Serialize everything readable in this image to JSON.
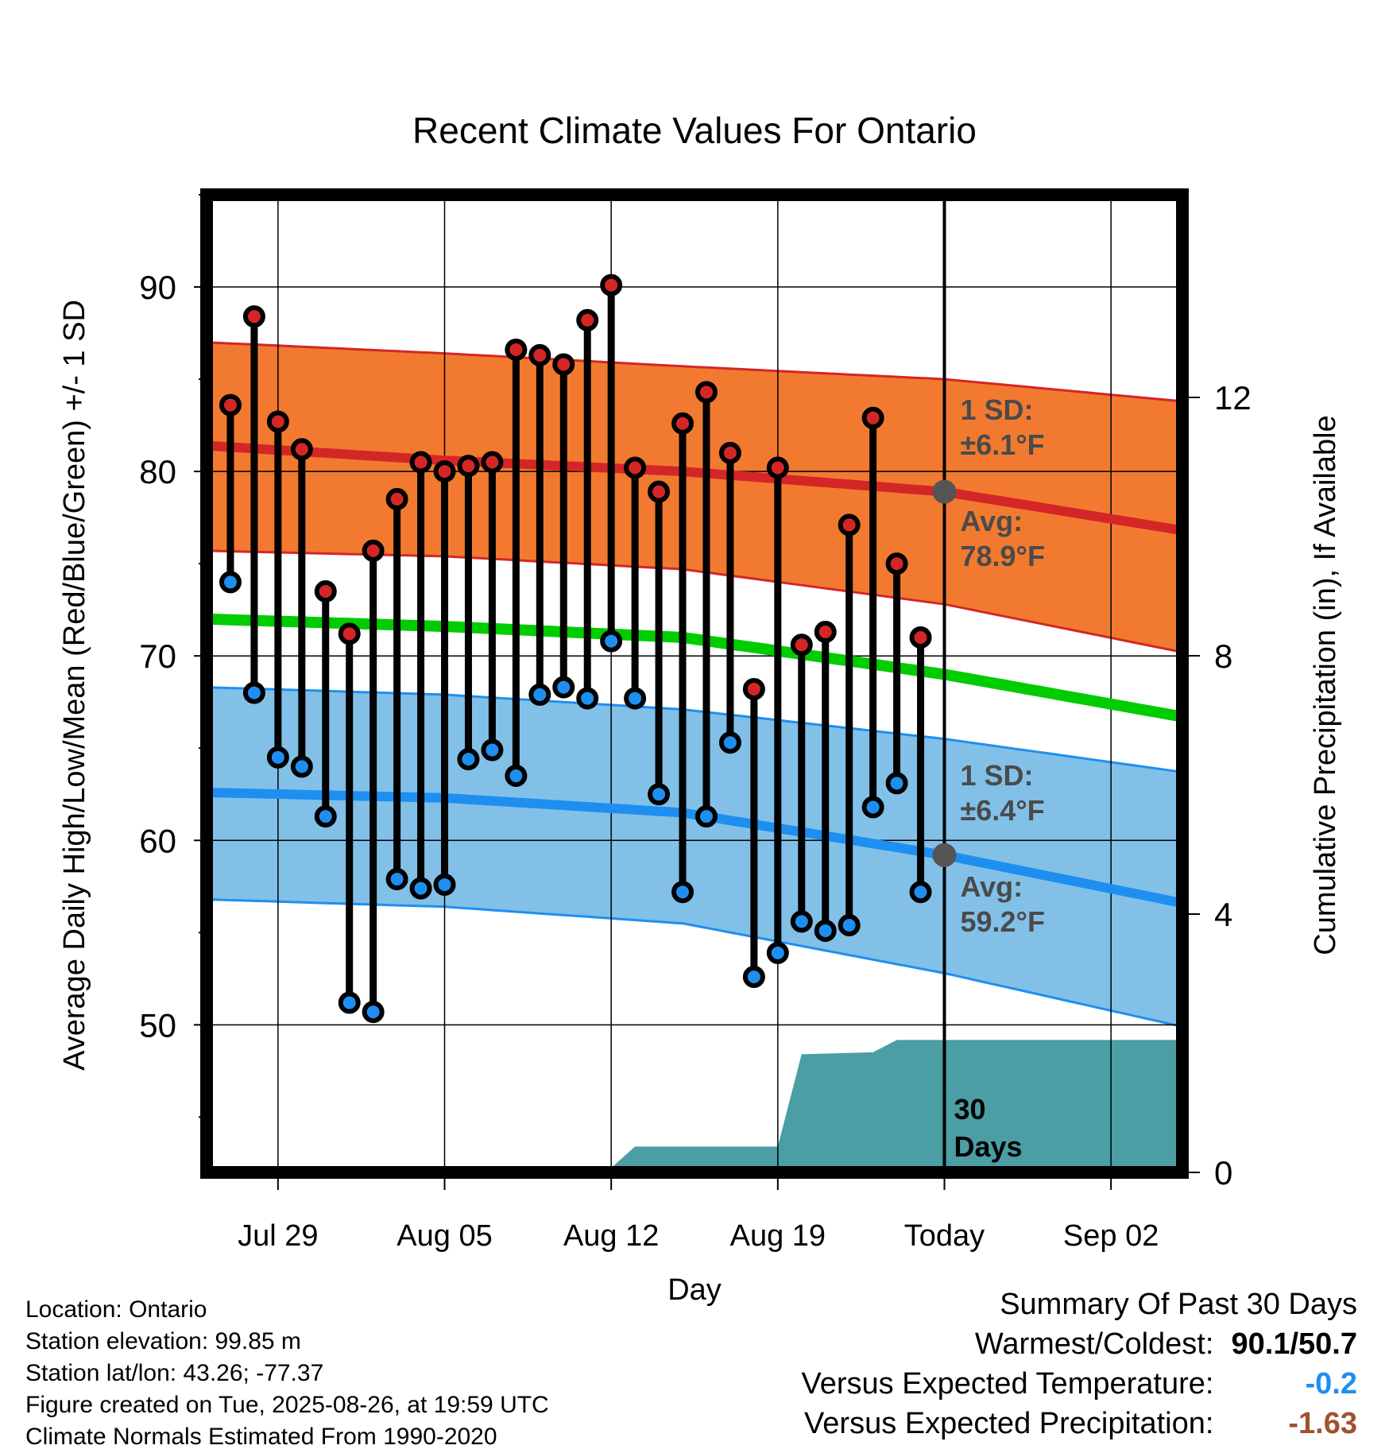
{
  "chart_data": {
    "type": "line",
    "title": "Recent Climate Values For Ontario",
    "xlabel": "Day",
    "ylabel": "Average Daily High/Low/Mean (Red/Blue/Green) +/- 1 SD",
    "y2label": "Cumulative Precipitation (in), If Available",
    "ylim": [
      42,
      95
    ],
    "y2lim": [
      0,
      12
    ],
    "yticks": [
      "50",
      "60",
      "70",
      "80",
      "90"
    ],
    "y2ticks": [
      "0",
      "4",
      "8",
      "12"
    ],
    "xlim": [
      "2025-07-26",
      "2025-09-05"
    ],
    "xticks": [
      {
        "date": "2025-07-29",
        "label": "Jul 29"
      },
      {
        "date": "2025-08-05",
        "label": "Aug 05"
      },
      {
        "date": "2025-08-12",
        "label": "Aug 12"
      },
      {
        "date": "2025-08-19",
        "label": "Aug 19"
      },
      {
        "date": "2025-08-26",
        "label": "Today"
      },
      {
        "date": "2025-09-02",
        "label": "Sep 02"
      }
    ],
    "grid": true,
    "today": "2025-08-26",
    "days": [
      "2025-07-27",
      "2025-07-28",
      "2025-07-29",
      "2025-07-30",
      "2025-07-31",
      "2025-08-01",
      "2025-08-02",
      "2025-08-03",
      "2025-08-04",
      "2025-08-05",
      "2025-08-06",
      "2025-08-07",
      "2025-08-08",
      "2025-08-09",
      "2025-08-10",
      "2025-08-11",
      "2025-08-12",
      "2025-08-13",
      "2025-08-14",
      "2025-08-15",
      "2025-08-16",
      "2025-08-17",
      "2025-08-18",
      "2025-08-19",
      "2025-08-20",
      "2025-08-21",
      "2025-08-22",
      "2025-08-23",
      "2025-08-24",
      "2025-08-25"
    ],
    "daily_high": [
      83.6,
      88.4,
      82.7,
      81.2,
      73.5,
      71.2,
      75.7,
      78.5,
      80.5,
      80.0,
      80.3,
      80.5,
      86.6,
      86.3,
      85.8,
      88.2,
      90.1,
      80.2,
      78.9,
      82.6,
      84.3,
      81.0,
      68.2,
      80.2,
      70.6,
      71.3,
      77.1,
      82.9,
      75.0,
      71.0
    ],
    "daily_low": [
      74.0,
      68.0,
      64.5,
      64.0,
      61.3,
      51.2,
      50.7,
      57.9,
      57.4,
      57.6,
      64.4,
      64.9,
      63.5,
      67.9,
      68.3,
      67.7,
      70.8,
      67.7,
      62.5,
      57.2,
      61.3,
      65.3,
      52.6,
      53.9,
      55.6,
      55.1,
      55.4,
      61.8,
      63.1,
      57.2
    ],
    "normal_x": [
      "2025-07-26",
      "2025-08-05",
      "2025-08-15",
      "2025-08-26",
      "2025-09-05"
    ],
    "normal_high": [
      81.4,
      80.6,
      80.0,
      78.9,
      76.8
    ],
    "normal_high_sd_upper": [
      87.0,
      86.4,
      85.7,
      85.0,
      83.8
    ],
    "normal_high_sd_lower": [
      75.7,
      75.4,
      74.7,
      72.8,
      70.2
    ],
    "normal_mean": [
      72.0,
      71.6,
      71.0,
      69.0,
      66.7
    ],
    "normal_low": [
      62.6,
      62.3,
      61.5,
      59.2,
      56.6
    ],
    "normal_low_sd_upper": [
      68.3,
      67.9,
      67.1,
      65.5,
      63.7
    ],
    "normal_low_sd_lower": [
      56.8,
      56.4,
      55.5,
      52.8,
      49.9
    ],
    "precip_x": [
      "2025-07-26",
      "2025-08-05",
      "2025-08-06",
      "2025-08-12",
      "2025-08-13",
      "2025-08-19",
      "2025-08-20",
      "2025-08-23",
      "2025-08-24",
      "2025-09-05"
    ],
    "precip_cumulative": [
      0.0,
      0.0,
      0.07,
      0.07,
      0.4,
      0.4,
      1.83,
      1.86,
      2.05,
      2.05
    ],
    "high_sd_label": "1 SD:",
    "high_sd_value": "±6.1°F",
    "high_avg_label": "Avg:",
    "high_avg_value": "78.9°F",
    "low_sd_label": "1 SD:",
    "low_sd_value": "±6.4°F",
    "low_avg_label": "Avg:",
    "low_avg_value": "59.2°F",
    "days_label_1": "30",
    "days_label_2": "Days",
    "colors": {
      "high_band": "#f27a30",
      "high_line": "#d42626",
      "low_band": "#82c0e8",
      "low_line": "#1e8ff0",
      "mean_line": "#00cc00",
      "precip": "#4a9ea4",
      "high_dot": "#d42626",
      "low_dot": "#1e8ff0",
      "annot": "#4a4a4a"
    }
  },
  "footer": {
    "location": "Location: Ontario",
    "elevation": "Station elevation: 99.85 m",
    "latlon": "Station lat/lon: 43.26; -77.37",
    "created": "Figure created on Tue, 2025-08-26, at 19:59 UTC",
    "normals": "Climate Normals Estimated From 1990-2020"
  },
  "summary": {
    "heading": "Summary Of Past 30 Days",
    "warm_cold_label": "Warmest/Coldest:",
    "warm_cold_value": "90.1/50.7",
    "temp_label": "Versus Expected Temperature:",
    "temp_value": "-0.2",
    "temp_color": "#1e8ff0",
    "precip_label": "Versus Expected Precipitation:",
    "precip_value": "-1.63",
    "precip_color": "#a0522d"
  }
}
